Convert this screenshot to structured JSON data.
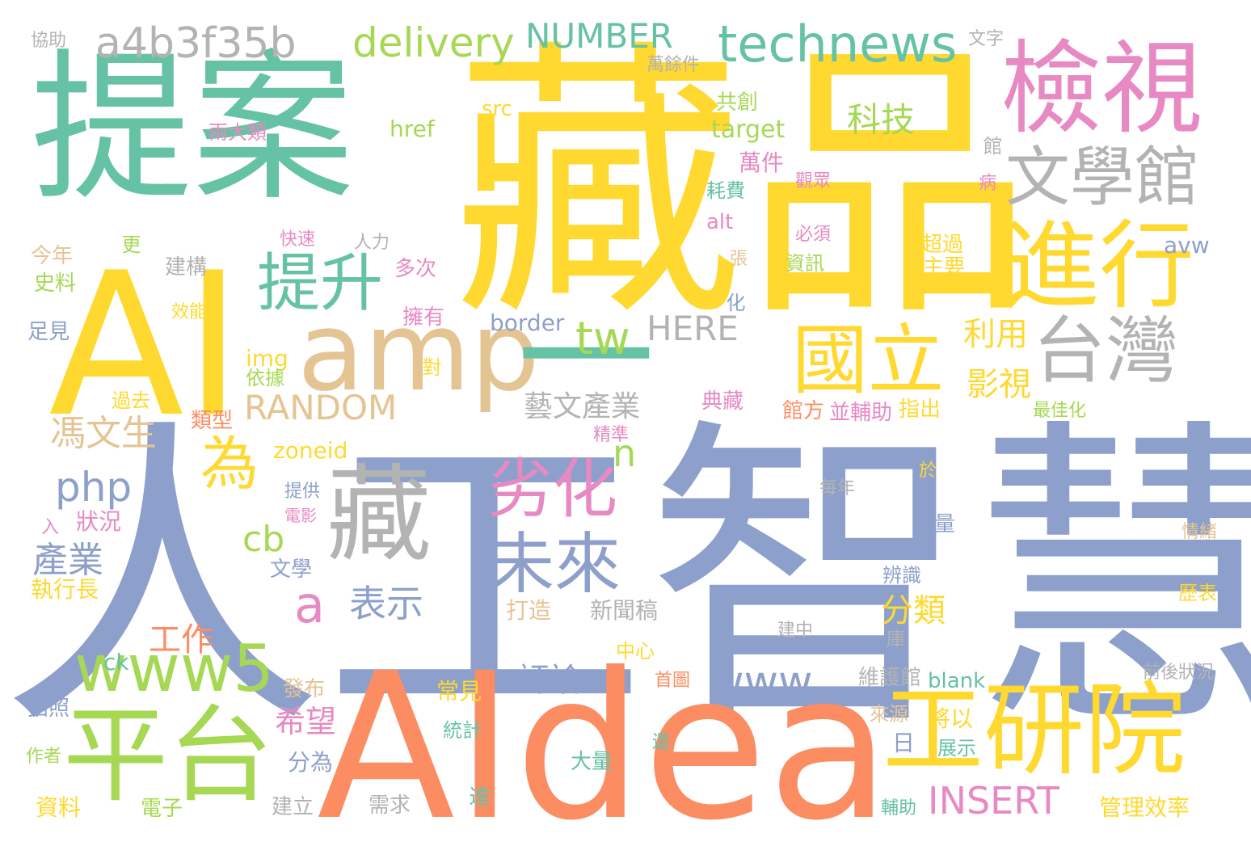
{
  "palette": {
    "teal": "#66c2a5",
    "orange": "#fc8d62",
    "blue": "#8da0cb",
    "pink": "#e78ac3",
    "green": "#a6d854",
    "yellow": "#ffd92f",
    "tan": "#e5c494",
    "gray": "#b3b3b3"
  },
  "words": [
    {
      "text": "人工智慧",
      "color": "blue"
    },
    {
      "text": "藏品",
      "color": "yellow"
    },
    {
      "text": "提案",
      "color": "teal"
    },
    {
      "text": "AIdea",
      "color": "orange"
    },
    {
      "text": "AI",
      "color": "yellow"
    },
    {
      "text": "檢視",
      "color": "pink"
    },
    {
      "text": "amp",
      "color": "tan"
    },
    {
      "text": "藏",
      "color": "gray"
    },
    {
      "text": "平台",
      "color": "green"
    },
    {
      "text": "工研院",
      "color": "yellow"
    },
    {
      "text": "進行",
      "color": "yellow"
    },
    {
      "text": "一",
      "color": "teal"
    },
    {
      "text": "文學館",
      "color": "gray"
    },
    {
      "text": "台灣",
      "color": "gray"
    },
    {
      "text": "國立",
      "color": "yellow"
    },
    {
      "text": "technews",
      "color": "teal"
    },
    {
      "text": "a4b3f35b",
      "color": "gray"
    },
    {
      "text": "delivery",
      "color": "green"
    },
    {
      "text": "NUMBER",
      "color": "teal"
    },
    {
      "text": "提升",
      "color": "teal"
    },
    {
      "text": "為",
      "color": "yellow"
    },
    {
      "text": "劣化",
      "color": "pink"
    },
    {
      "text": "未來",
      "color": "blue"
    },
    {
      "text": "www5",
      "color": "green"
    },
    {
      "text": "科技",
      "color": "green"
    },
    {
      "text": "tw",
      "color": "green"
    },
    {
      "text": "HERE",
      "color": "gray"
    },
    {
      "text": "RANDOM",
      "color": "tan"
    },
    {
      "text": "藝文產業",
      "color": "gray"
    },
    {
      "text": "php",
      "color": "blue"
    },
    {
      "text": "馮文生",
      "color": "tan"
    },
    {
      "text": "產業",
      "color": "blue"
    },
    {
      "text": "cb",
      "color": "green"
    },
    {
      "text": "a",
      "color": "pink"
    },
    {
      "text": "表示",
      "color": "blue"
    },
    {
      "text": "n",
      "color": "green"
    },
    {
      "text": "www",
      "color": "blue"
    },
    {
      "text": "INSERT",
      "color": "pink"
    },
    {
      "text": "利用",
      "color": "yellow"
    },
    {
      "text": "影視",
      "color": "yellow"
    },
    {
      "text": "分類",
      "color": "yellow"
    },
    {
      "text": "工作",
      "color": "orange"
    },
    {
      "text": "評論",
      "color": "blue"
    },
    {
      "text": "希望",
      "color": "pink"
    },
    {
      "text": "ck",
      "color": "teal"
    },
    {
      "text": "日",
      "color": "blue"
    },
    {
      "text": "將以",
      "color": "yellow"
    },
    {
      "text": "展示",
      "color": "teal"
    },
    {
      "text": "管理效率",
      "color": "yellow"
    },
    {
      "text": "協助",
      "color": "gray"
    },
    {
      "text": "文字",
      "color": "gray"
    },
    {
      "text": "萬餘件",
      "color": "gray"
    },
    {
      "text": "src",
      "color": "yellow"
    },
    {
      "text": "共創",
      "color": "green"
    },
    {
      "text": "兩大類",
      "color": "pink"
    },
    {
      "text": "href",
      "color": "green"
    },
    {
      "text": "target",
      "color": "green"
    },
    {
      "text": "萬件",
      "color": "pink"
    },
    {
      "text": "館",
      "color": "gray"
    },
    {
      "text": "耗費",
      "color": "teal"
    },
    {
      "text": "觀眾",
      "color": "pink"
    },
    {
      "text": "病",
      "color": "pink"
    },
    {
      "text": "alt",
      "color": "pink"
    },
    {
      "text": "必須",
      "color": "pink"
    },
    {
      "text": "資訊",
      "color": "green"
    },
    {
      "text": "超過",
      "color": "yellow"
    },
    {
      "text": "主要",
      "color": "yellow"
    },
    {
      "text": "avw",
      "color": "blue"
    },
    {
      "text": "今年",
      "color": "tan"
    },
    {
      "text": "更",
      "color": "green"
    },
    {
      "text": "快速",
      "color": "pink"
    },
    {
      "text": "人力",
      "color": "gray"
    },
    {
      "text": "張",
      "color": "tan"
    },
    {
      "text": "建構",
      "color": "gray"
    },
    {
      "text": "多次",
      "color": "pink"
    },
    {
      "text": "史料",
      "color": "green"
    },
    {
      "text": "化",
      "color": "blue"
    },
    {
      "text": "效能",
      "color": "yellow"
    },
    {
      "text": "擁有",
      "color": "pink"
    },
    {
      "text": "border",
      "color": "blue"
    },
    {
      "text": "足見",
      "color": "blue"
    },
    {
      "text": "img",
      "color": "yellow"
    },
    {
      "text": "對",
      "color": "yellow"
    },
    {
      "text": "依據",
      "color": "green"
    },
    {
      "text": "過去",
      "color": "yellow"
    },
    {
      "text": "典藏",
      "color": "pink"
    },
    {
      "text": "類型",
      "color": "orange"
    },
    {
      "text": "館方",
      "color": "orange"
    },
    {
      "text": "並輔助",
      "color": "pink"
    },
    {
      "text": "指出",
      "color": "yellow"
    },
    {
      "text": "最佳化",
      "color": "green"
    },
    {
      "text": "精準",
      "color": "pink"
    },
    {
      "text": "zoneid",
      "color": "yellow"
    },
    {
      "text": "於",
      "color": "yellow"
    },
    {
      "text": "提供",
      "color": "blue"
    },
    {
      "text": "每年",
      "color": "gray"
    },
    {
      "text": "電影",
      "color": "pink"
    },
    {
      "text": "入",
      "color": "pink"
    },
    {
      "text": "狀況",
      "color": "pink"
    },
    {
      "text": "巨量",
      "color": "blue"
    },
    {
      "text": "情緒",
      "color": "tan"
    },
    {
      "text": "文學",
      "color": "blue"
    },
    {
      "text": "辨識",
      "color": "blue"
    },
    {
      "text": "執行長",
      "color": "yellow"
    },
    {
      "text": "打造",
      "color": "tan"
    },
    {
      "text": "新聞稿",
      "color": "gray"
    },
    {
      "text": "歷表",
      "color": "yellow"
    },
    {
      "text": "建中",
      "color": "gray"
    },
    {
      "text": "中心",
      "color": "yellow"
    },
    {
      "text": "庫",
      "color": "gray"
    },
    {
      "text": "首圖",
      "color": "orange"
    },
    {
      "text": "維護館",
      "color": "gray"
    },
    {
      "text": "blank",
      "color": "teal"
    },
    {
      "text": "前後狀況",
      "color": "gray"
    },
    {
      "text": "發布",
      "color": "tan"
    },
    {
      "text": "常見",
      "color": "yellow"
    },
    {
      "text": "拍照",
      "color": "blue"
    },
    {
      "text": "來源",
      "color": "tan"
    },
    {
      "text": "統計",
      "color": "teal"
    },
    {
      "text": "作者",
      "color": "green"
    },
    {
      "text": "分為",
      "color": "blue"
    },
    {
      "text": "大量",
      "color": "teal"
    },
    {
      "text": "還",
      "color": "teal"
    },
    {
      "text": "資料",
      "color": "yellow"
    },
    {
      "text": "電子",
      "color": "green"
    },
    {
      "text": "建立",
      "color": "gray"
    },
    {
      "text": "需求",
      "color": "gray"
    },
    {
      "text": "達",
      "color": "teal"
    },
    {
      "text": "輔助",
      "color": "teal"
    }
  ]
}
